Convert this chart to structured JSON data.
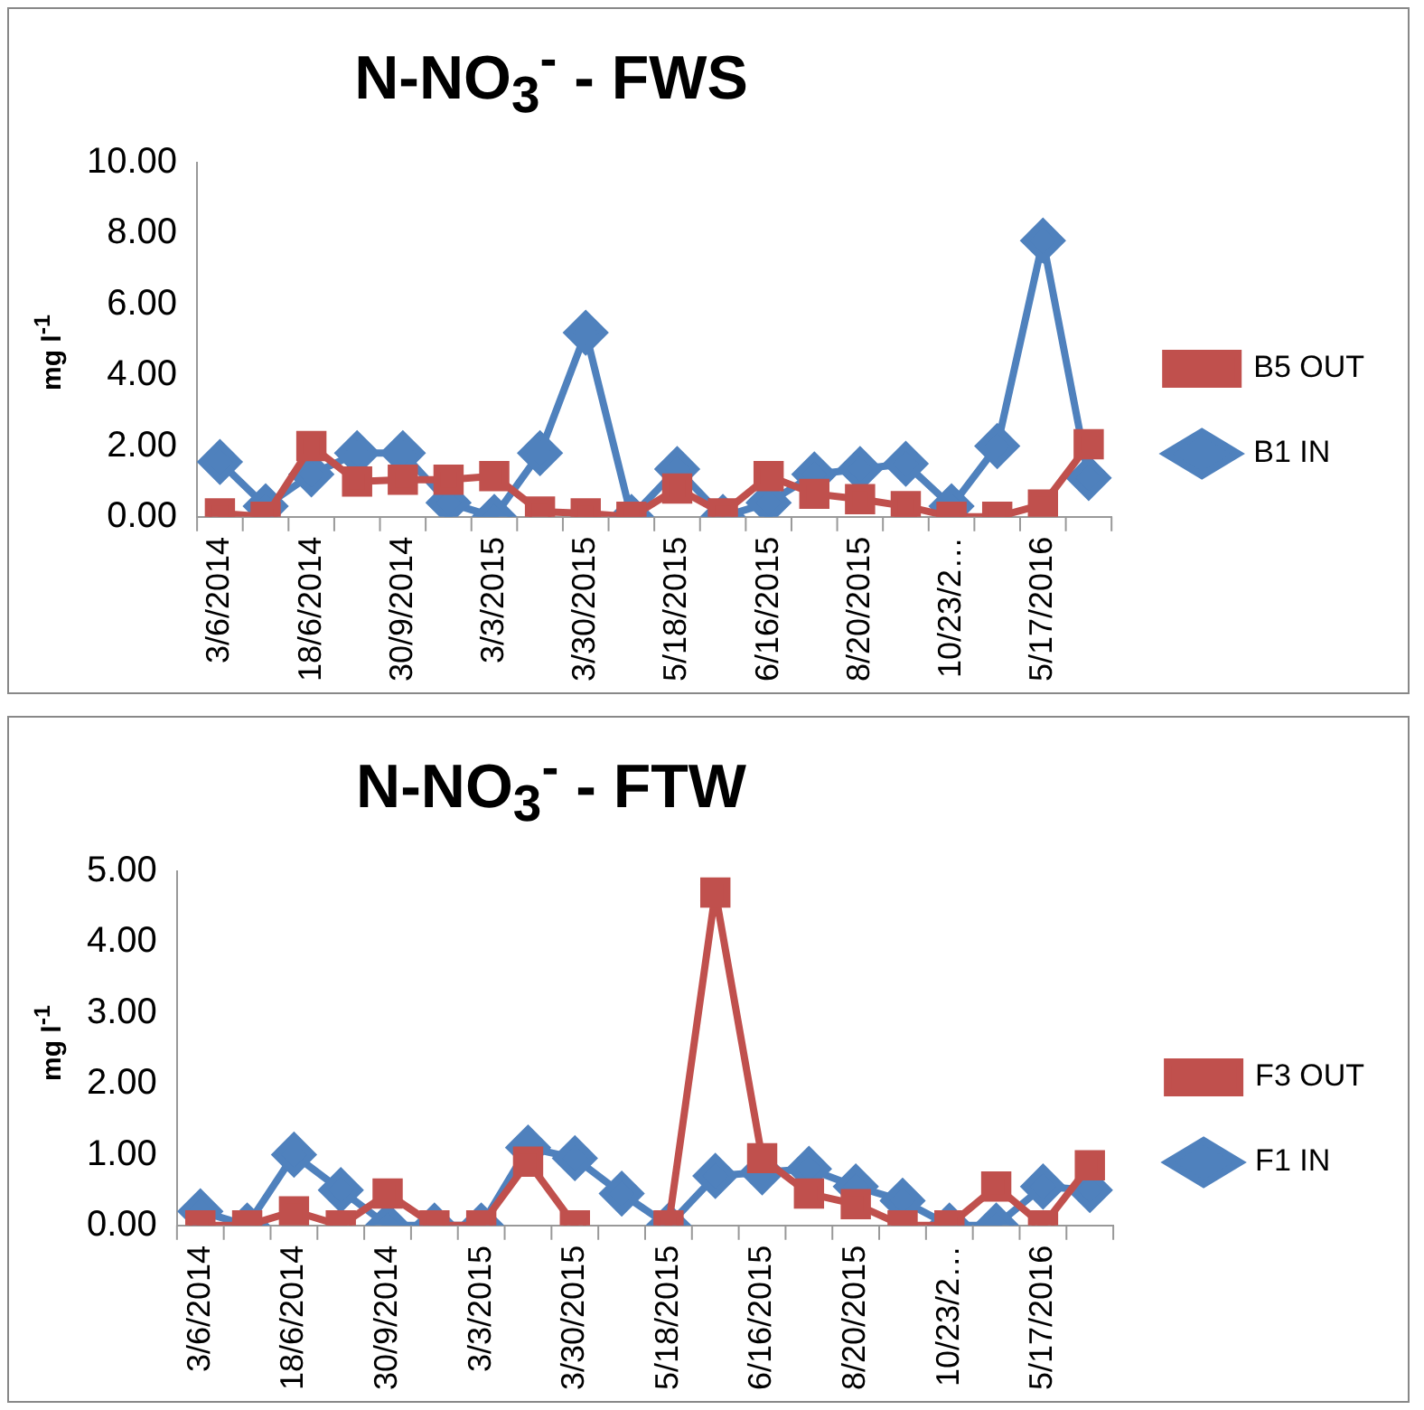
{
  "chart_data": [
    {
      "type": "line",
      "title": "N-NO$_{3}$$^{-}$ - FWS",
      "ylabel": "mg l$^{-1}$",
      "categories": [
        "3/6/2014",
        null,
        "18/6/2014",
        null,
        "30/9/2014",
        null,
        "3/3/2015",
        null,
        "3/30/2015",
        null,
        "5/18/2015",
        null,
        "6/16/2015",
        null,
        "8/20/2015",
        null,
        "10/23/2…",
        null,
        "5/17/2016",
        null
      ],
      "series": [
        {
          "name": "B1 IN",
          "color": "#4f81bd",
          "marker": "diamond",
          "values": [
            1.55,
            0.3,
            1.2,
            1.8,
            1.8,
            0.4,
            0,
            1.8,
            5.2,
            0,
            1.35,
            0,
            0.4,
            1.2,
            1.35,
            1.5,
            0.3,
            2.0,
            7.8,
            1.1
          ]
        },
        {
          "name": "B5 OUT",
          "color": "#c0504d",
          "marker": "square",
          "values": [
            0.1,
            0,
            2.0,
            1.0,
            1.05,
            1.05,
            1.15,
            0.15,
            0.1,
            0,
            0.8,
            0.1,
            1.15,
            0.65,
            0.5,
            0.3,
            0,
            0,
            0.35,
            2.05
          ]
        }
      ],
      "ylim": [
        0,
        10
      ],
      "yticks": [
        {
          "value": 0,
          "label": "0.00"
        },
        {
          "value": 2,
          "label": "2.00"
        },
        {
          "value": 4,
          "label": "4.00"
        },
        {
          "value": 6,
          "label": "6.00"
        },
        {
          "value": 8,
          "label": "8.00"
        },
        {
          "value": 10,
          "label": "10.00"
        }
      ],
      "grid": false,
      "legend": "right",
      "line_style": "solid"
    },
    {
      "type": "line",
      "title": "N-NO$_{3}$$^{-}$ -  FTW",
      "ylabel": "mg l$^{-1}$",
      "categories": [
        "3/6/2014",
        null,
        "18/6/2014",
        null,
        "30/9/2014",
        null,
        "3/3/2015",
        null,
        "3/30/2015",
        null,
        "5/18/2015",
        null,
        "6/16/2015",
        null,
        "8/20/2015",
        null,
        "10/23/2…",
        null,
        "5/17/2016",
        null
      ],
      "series": [
        {
          "name": "F1 IN",
          "color": "#4f81bd",
          "marker": "diamond",
          "values": [
            0.2,
            0,
            1.0,
            0.5,
            0,
            0,
            0,
            1.1,
            0.95,
            0.45,
            0,
            0.7,
            0.75,
            0.8,
            0.55,
            0.35,
            0,
            0,
            0.55,
            0.5
          ]
        },
        {
          "name": "F3 OUT",
          "color": "#c0504d",
          "marker": "square",
          "values": [
            0,
            0,
            0.2,
            0,
            0.45,
            0,
            0,
            0.9,
            0,
            null,
            0,
            4.7,
            0.95,
            0.45,
            0.3,
            0,
            0,
            0.55,
            0,
            0.85
          ]
        }
      ],
      "ylim": [
        0,
        5
      ],
      "yticks": [
        {
          "value": 0,
          "label": "0.00"
        },
        {
          "value": 1,
          "label": "1.00"
        },
        {
          "value": 2,
          "label": "2.00"
        },
        {
          "value": 3,
          "label": "3.00"
        },
        {
          "value": 4,
          "label": "4.00"
        },
        {
          "value": 5,
          "label": "5.00"
        }
      ],
      "grid": false,
      "legend": "right",
      "line_style": "solid"
    }
  ]
}
